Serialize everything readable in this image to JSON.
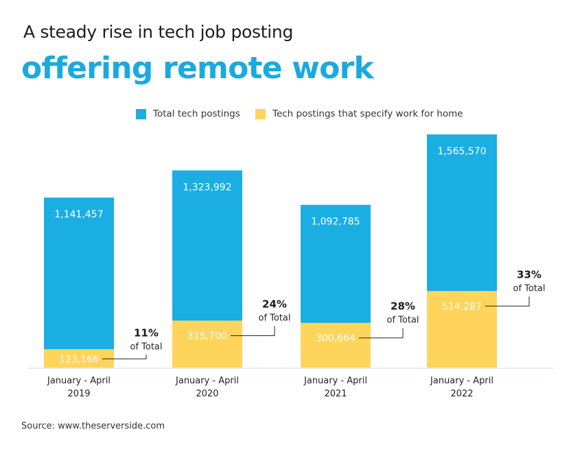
{
  "title": {
    "line1": "A steady rise in tech job posting",
    "line2": "offering remote work"
  },
  "legend": [
    {
      "label": "Total tech postings",
      "color": "#1baee3"
    },
    {
      "label": "Tech postings that specify work for home",
      "color": "#ffd45b"
    }
  ],
  "source": "Source: www.theserverside.com",
  "chart_data": {
    "type": "bar",
    "stacked": false,
    "title": "A steady rise in tech job posting offering remote work",
    "categories": [
      [
        "January - April",
        "2019"
      ],
      [
        "January - April",
        "2020"
      ],
      [
        "January - April",
        "2021"
      ],
      [
        "January - April",
        "2022"
      ]
    ],
    "series": [
      {
        "name": "Total tech postings",
        "color": "#1baee3",
        "values": [
          1141457,
          1323992,
          1092785,
          1565570
        ],
        "labels": [
          "1,141,457",
          "1,323,992",
          "1,092,785",
          "1,565,570"
        ]
      },
      {
        "name": "Tech postings that specify work for home",
        "color": "#ffd45b",
        "values": [
          123166,
          315700,
          300664,
          514287
        ],
        "labels": [
          "123,166",
          "315,700",
          "300,664",
          "514,287"
        ]
      }
    ],
    "annotations": [
      {
        "percent": "11%",
        "text": "of Total"
      },
      {
        "percent": "24%",
        "text": "of Total"
      },
      {
        "percent": "28%",
        "text": "of Total"
      },
      {
        "percent": "33%",
        "text": "of Total"
      }
    ],
    "ylim": [
      0,
      1900000
    ],
    "xlabel": "",
    "ylabel": "",
    "grid": false
  }
}
